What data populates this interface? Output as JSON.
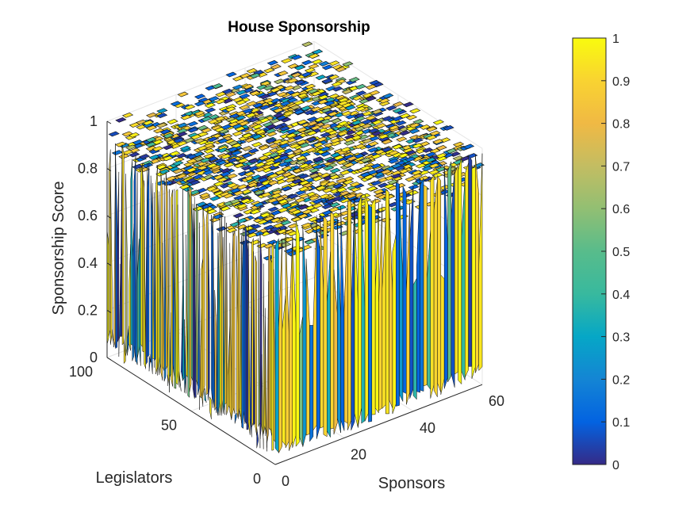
{
  "chart_data": {
    "type": "surface3d",
    "title": "House Sponsorship",
    "xlabel": "Sponsors",
    "ylabel": "Legislators",
    "zlabel": "Sponsorship Score",
    "xlim": [
      0,
      60
    ],
    "ylim": [
      0,
      100
    ],
    "zlim": [
      0,
      1
    ],
    "x_ticks": [
      "0",
      "20",
      "40",
      "60"
    ],
    "y_ticks": [
      "0",
      "50",
      "100"
    ],
    "z_ticks": [
      "0",
      "0.2",
      "0.4",
      "0.6",
      "0.8",
      "1"
    ],
    "colormap": "parula",
    "colorbar": {
      "range": [
        0,
        1
      ],
      "ticks": [
        "0",
        "0.1",
        "0.2",
        "0.3",
        "0.4",
        "0.5",
        "0.6",
        "0.7",
        "0.8",
        "0.9",
        "1"
      ]
    },
    "grid": true,
    "view": "3d-isometric"
  }
}
